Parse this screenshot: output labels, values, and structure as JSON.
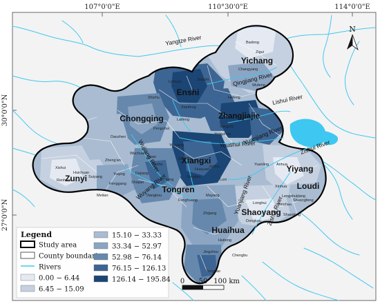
{
  "graticule": {
    "lon": [
      "107°0'0\"E",
      "110°30'0\"E",
      "114°0'0\"E"
    ],
    "lat": [
      "30°0'0\"N",
      "27°0'0\"N"
    ]
  },
  "north_arrow": {
    "label": "N"
  },
  "regions": [
    "Enshi",
    "Yichang",
    "Chongqing",
    "Zhangjiajie",
    "Xiangxi",
    "Zunyi",
    "Tongren",
    "Yiyang",
    "Loudi",
    "Shaoyang",
    "Huaihua"
  ],
  "rivers": [
    "Yangtze River",
    "Qingjiang River",
    "Lishui River",
    "Youshui River",
    "Yuanjiang River",
    "Zishui River",
    "Wujiang River",
    "Wuyang River",
    "Yuanjiang River",
    "Zishui River"
  ],
  "counties": [
    "Badong",
    "Zigui",
    "Changyang",
    "Wufeng",
    "Hefeng",
    "Lichuan",
    "Jianshi",
    "Xianfeng",
    "Shizhu",
    "Laifeng",
    "Pengshui",
    "Yongshun",
    "Sangzhi",
    "Youyang",
    "Xiushan",
    "Daozhen",
    "Wuchuan",
    "Zheng'an",
    "Yanhe",
    "Dejiang",
    "Xishui",
    "Suiyang",
    "Fenggang",
    "Meitan",
    "Jiangkou",
    "Songtao",
    "Huayuan",
    "Jishou",
    "Luxi",
    "Yuanling",
    "Anhua",
    "Xinhua",
    "Lengshuijiang",
    "Shuangfeng",
    "Xinshao",
    "Longhui",
    "Dongkou",
    "Shaodong",
    "Mayang",
    "Zhijiang",
    "Huitong",
    "Jingzhou",
    "Tongdao",
    "Chengbu",
    "Huichuan",
    "Renhuai",
    "Yuqing",
    "Shiqian",
    "Sinan",
    "Yinjiang",
    "Fenghuang"
  ],
  "scale_bar": {
    "ticks": [
      "0",
      "50",
      "100 km"
    ]
  },
  "legend": {
    "title": "Legend",
    "items": [
      {
        "label": "Study area",
        "kind": "outline",
        "color": "#000000"
      },
      {
        "label": "County boundaries",
        "kind": "box",
        "color": "#ffffff"
      },
      {
        "label": "Rivers",
        "kind": "line",
        "color": "#3ec7f0"
      },
      {
        "label": "0.00 − 6.44",
        "kind": "fill",
        "color": "#e5eaf2"
      },
      {
        "label": "6.45 − 15.09",
        "kind": "fill",
        "color": "#c5d1e0"
      },
      {
        "label": "15.10 − 33.33",
        "kind": "fill",
        "color": "#a9bcd2"
      },
      {
        "label": "33.34 − 52.97",
        "kind": "fill",
        "color": "#8ba5c3"
      },
      {
        "label": "52.98 − 76.14",
        "kind": "fill",
        "color": "#6688ad"
      },
      {
        "label": "76.15 − 126.13",
        "kind": "fill",
        "color": "#3d6593"
      },
      {
        "label": "126.14 − 195.84",
        "kind": "fill",
        "color": "#1b4574"
      }
    ]
  },
  "colors": {
    "river": "#3ec7f0",
    "boundary": "#000000",
    "background": "#f3f3f3"
  }
}
